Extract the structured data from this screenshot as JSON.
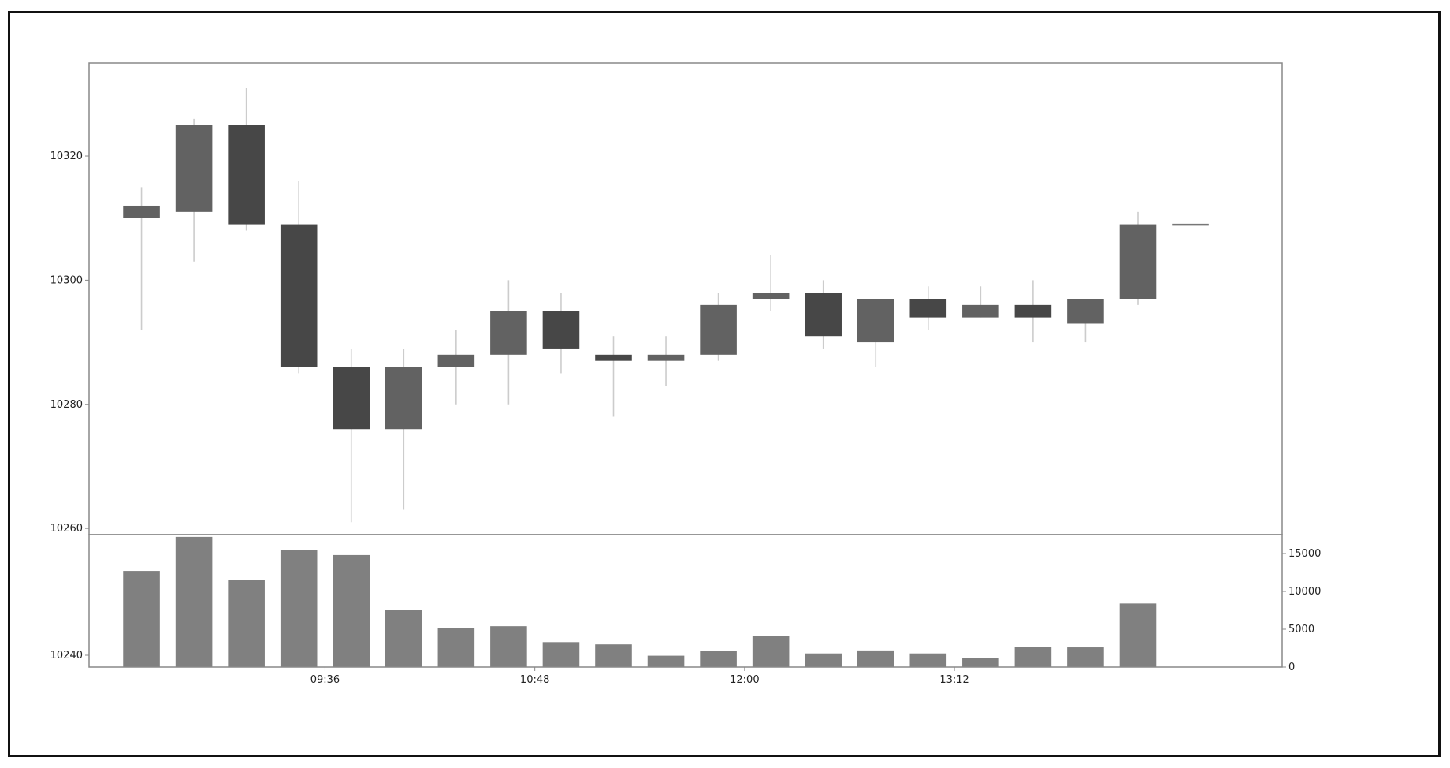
{
  "chart_data": {
    "type": "candlestick",
    "x_ticks": [
      "09:36",
      "10:48",
      "12:00",
      "13:12"
    ],
    "x_tick_positions": [
      3.5,
      7.5,
      11.5,
      15.5
    ],
    "price_axis": {
      "ticks": [
        10240,
        10260,
        10280,
        10300,
        10320
      ],
      "ylim": [
        10259,
        10335
      ]
    },
    "volume_axis": {
      "ticks": [
        0,
        5000,
        10000,
        15000
      ],
      "ylim": [
        0,
        17500
      ],
      "side": "right"
    },
    "candles": [
      {
        "open": 10310,
        "high": 10315,
        "low": 10292,
        "close": 10312
      },
      {
        "open": 10311,
        "high": 10326,
        "low": 10303,
        "close": 10325
      },
      {
        "open": 10325,
        "high": 10331,
        "low": 10308,
        "close": 10309
      },
      {
        "open": 10309,
        "high": 10316,
        "low": 10285,
        "close": 10286
      },
      {
        "open": 10286,
        "high": 10289,
        "low": 10261,
        "close": 10276
      },
      {
        "open": 10276,
        "high": 10289,
        "low": 10263,
        "close": 10286
      },
      {
        "open": 10286,
        "high": 10292,
        "low": 10280,
        "close": 10288
      },
      {
        "open": 10288,
        "high": 10300,
        "low": 10280,
        "close": 10295
      },
      {
        "open": 10295,
        "high": 10298,
        "low": 10285,
        "close": 10289
      },
      {
        "open": 10288,
        "high": 10291,
        "low": 10278,
        "close": 10287
      },
      {
        "open": 10287,
        "high": 10291,
        "low": 10283,
        "close": 10288
      },
      {
        "open": 10288,
        "high": 10298,
        "low": 10287,
        "close": 10296
      },
      {
        "open": 10297,
        "high": 10304,
        "low": 10295,
        "close": 10298
      },
      {
        "open": 10298,
        "high": 10300,
        "low": 10289,
        "close": 10291
      },
      {
        "open": 10290,
        "high": 10297,
        "low": 10286,
        "close": 10297
      },
      {
        "open": 10297,
        "high": 10299,
        "low": 10292,
        "close": 10294
      },
      {
        "open": 10294,
        "high": 10299,
        "low": 10294,
        "close": 10296
      },
      {
        "open": 10296,
        "high": 10300,
        "low": 10290,
        "close": 10294
      },
      {
        "open": 10293,
        "high": 10297,
        "low": 10290,
        "close": 10297
      },
      {
        "open": 10297,
        "high": 10311,
        "low": 10296,
        "close": 10309
      },
      {
        "open": 10309,
        "high": 10309,
        "low": 10309,
        "close": 10309
      }
    ],
    "volumes": [
      12700,
      17200,
      11500,
      15500,
      14800,
      7600,
      5200,
      5400,
      3300,
      3000,
      1500,
      2100,
      4100,
      1800,
      2200,
      1800,
      1200,
      2700,
      2600,
      8400,
      0
    ],
    "grid": false,
    "colors": {
      "up": "#626262",
      "down": "#474747",
      "wick": "#cccccc",
      "volume": "#808080",
      "axis": "#888888",
      "text": "#222222"
    }
  }
}
